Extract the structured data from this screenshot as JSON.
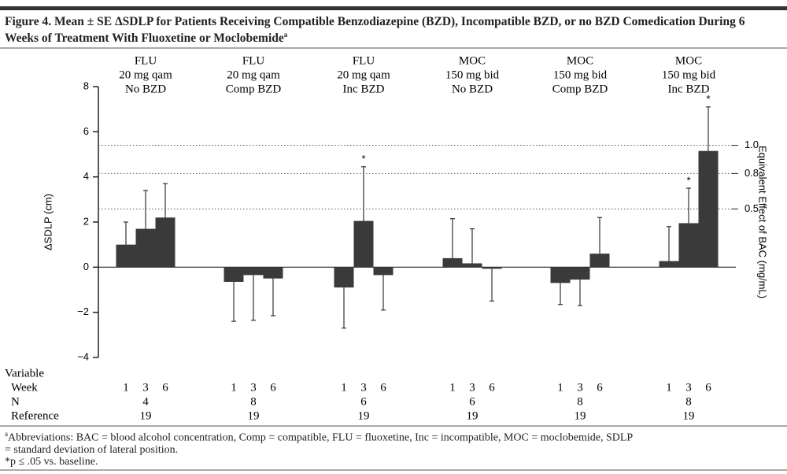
{
  "chart_data": {
    "type": "grouped_bar_error",
    "title": "Figure 4. Mean ± SE ΔSDLP for Patients Receiving Compatible Benzodiazepine (BZD), Incompatible BZD, or no BZD Comedication During 6 Weeks of Treatment With Fluoxetine or Moclobemide",
    "title_note": "a",
    "y_label": "ΔSDLP (cm)",
    "y2_label": "Equivalent Effect of BAC (mg/mL)",
    "ylim": [
      -4,
      8
    ],
    "yticks": [
      {
        "value": -4,
        "label": "−4"
      },
      {
        "value": -2,
        "label": "−2"
      },
      0,
      2,
      4,
      6,
      8
    ],
    "reference_lines": [
      {
        "value": 5.4,
        "label": "1.0"
      },
      {
        "value": 4.15,
        "label": "0.8"
      },
      {
        "value": 2.58,
        "label": "0.5"
      }
    ],
    "color": "#3a3a3a",
    "significance_marker": "*",
    "row_labels": [
      "Variable",
      "Week",
      "N",
      "Reference"
    ],
    "groups": [
      {
        "label": [
          "FLU",
          "20 mg qam",
          "No BZD"
        ],
        "weeks": [
          1,
          3,
          6
        ],
        "n": 4,
        "reference": 19,
        "values": [
          1.0,
          1.7,
          2.2
        ],
        "errors": [
          1.0,
          1.7,
          1.5
        ],
        "significant": [
          false,
          false,
          false
        ]
      },
      {
        "label": [
          "FLU",
          "20 mg qam",
          "Comp BZD"
        ],
        "weeks": [
          1,
          3,
          6
        ],
        "n": 8,
        "reference": 19,
        "values": [
          -0.65,
          -0.35,
          -0.5
        ],
        "errors": [
          1.75,
          2.0,
          1.65
        ],
        "significant": [
          false,
          false,
          false
        ]
      },
      {
        "label": [
          "FLU",
          "20 mg qam",
          "Inc BZD"
        ],
        "weeks": [
          1,
          3,
          6
        ],
        "n": 6,
        "reference": 19,
        "values": [
          -0.9,
          2.05,
          -0.35
        ],
        "errors": [
          1.8,
          2.4,
          1.55
        ],
        "significant": [
          false,
          true,
          false
        ]
      },
      {
        "label": [
          "MOC",
          "150 mg bid",
          "No BZD"
        ],
        "weeks": [
          1,
          3,
          6
        ],
        "n": 6,
        "reference": 19,
        "values": [
          0.4,
          0.17,
          -0.07
        ],
        "errors": [
          1.75,
          1.53,
          1.43
        ],
        "significant": [
          false,
          false,
          false
        ]
      },
      {
        "label": [
          "MOC",
          "150 mg bid",
          "Comp BZD"
        ],
        "weeks": [
          1,
          3,
          6
        ],
        "n": 8,
        "reference": 19,
        "values": [
          -0.7,
          -0.55,
          0.6
        ],
        "errors": [
          0.95,
          1.15,
          1.6
        ],
        "significant": [
          false,
          false,
          false
        ]
      },
      {
        "label": [
          "MOC",
          "150 mg bid",
          "Inc BZD"
        ],
        "weeks": [
          1,
          3,
          6
        ],
        "n": 8,
        "reference": 19,
        "values": [
          0.27,
          1.95,
          5.15
        ],
        "errors": [
          1.53,
          1.55,
          1.95
        ],
        "significant": [
          false,
          true,
          true
        ]
      }
    ],
    "footnotes": [
      {
        "marker": "a",
        "text": "Abbreviations: BAC = blood alcohol concentration, Comp = compatible, FLU = fluoxetine, Inc = incompatible, MOC = moclobemide, SDLP = standard deviation of lateral position."
      },
      {
        "marker": "*",
        "text": "p ≤ .05 vs. baseline."
      }
    ]
  }
}
